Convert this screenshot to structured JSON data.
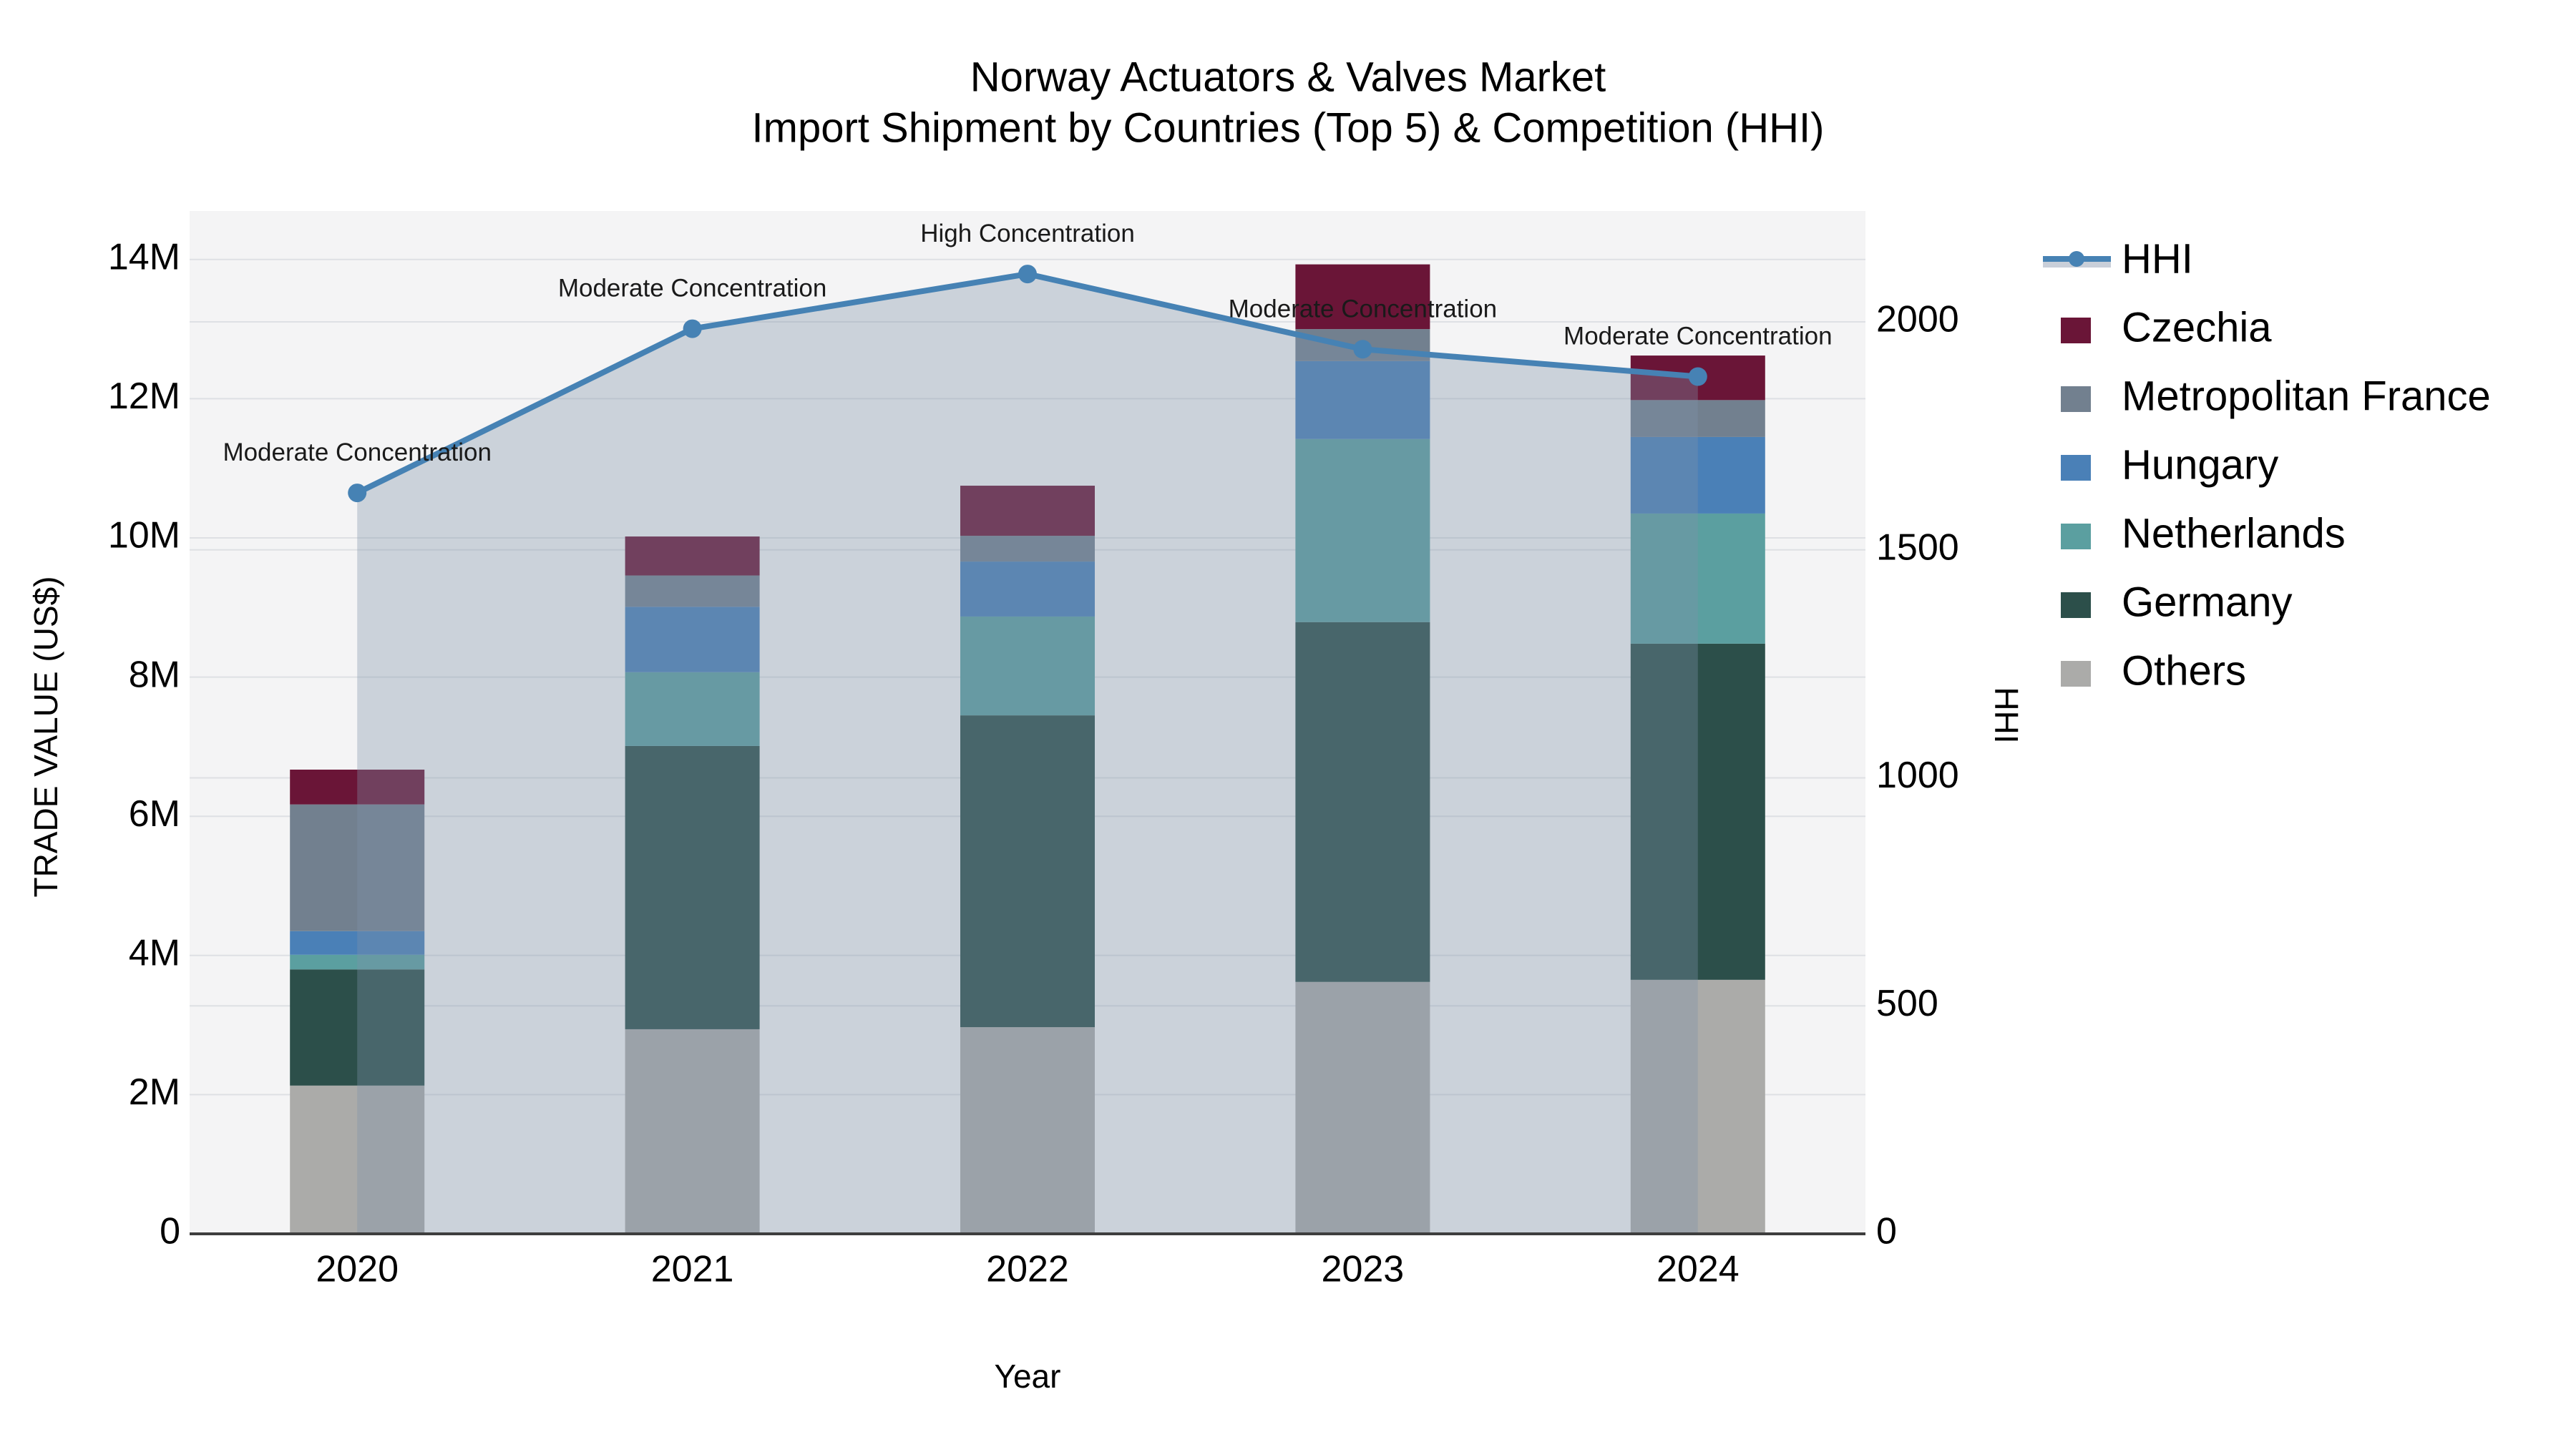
{
  "title": {
    "line1": "Norway Actuators & Valves Market",
    "line2": "Import Shipment by Countries (Top 5) & Competition (HHI)"
  },
  "axes": {
    "y_left": {
      "label": "TRADE VALUE (US$)",
      "ticks": [
        {
          "label": "0",
          "value": 0
        },
        {
          "label": "2M",
          "value": 2
        },
        {
          "label": "4M",
          "value": 4
        },
        {
          "label": "6M",
          "value": 6
        },
        {
          "label": "8M",
          "value": 8
        },
        {
          "label": "10M",
          "value": 10
        },
        {
          "label": "12M",
          "value": 12
        },
        {
          "label": "14M",
          "value": 14
        }
      ]
    },
    "y_right": {
      "label": "HHI",
      "ticks": [
        {
          "label": "0",
          "value": 0
        },
        {
          "label": "500",
          "value": 500
        },
        {
          "label": "1000",
          "value": 1000
        },
        {
          "label": "1500",
          "value": 1500
        },
        {
          "label": "2000",
          "value": 2000
        }
      ]
    },
    "x": {
      "label": "Year",
      "categories": [
        "2020",
        "2021",
        "2022",
        "2023",
        "2024"
      ]
    }
  },
  "legend": [
    {
      "label": "HHI",
      "type": "line",
      "color": "#4682B4"
    },
    {
      "label": "Czechia",
      "type": "swatch",
      "color": "#6A1537"
    },
    {
      "label": "Metropolitan France",
      "type": "swatch",
      "color": "#72808F"
    },
    {
      "label": "Hungary",
      "type": "swatch",
      "color": "#4A80B7"
    },
    {
      "label": "Netherlands",
      "type": "swatch",
      "color": "#5B9FA0"
    },
    {
      "label": "Germany",
      "type": "swatch",
      "color": "#2C4F4A"
    },
    {
      "label": "Others",
      "type": "swatch",
      "color": "#ABABA9"
    }
  ],
  "chart_data": {
    "type": "bar+line",
    "title": "Norway Actuators & Valves Market — Import Shipment by Countries (Top 5) & Competition (HHI)",
    "xlabel": "Year",
    "ylabel_left": "TRADE VALUE (US$)",
    "ylabel_right": "HHI",
    "ylim_left_millions": [
      0,
      14.7
    ],
    "ylim_right": [
      0,
      2325
    ],
    "grid": true,
    "legend_position": "right",
    "categories": [
      "2020",
      "2021",
      "2022",
      "2023",
      "2024"
    ],
    "series": [
      {
        "name": "Others",
        "color": "#ABABA9",
        "values_millions": [
          2.13,
          2.94,
          2.97,
          3.62,
          3.65
        ]
      },
      {
        "name": "Germany",
        "color": "#2C4F4A",
        "values_millions": [
          1.67,
          4.07,
          4.48,
          5.17,
          4.83
        ]
      },
      {
        "name": "Netherlands",
        "color": "#5B9FA0",
        "values_millions": [
          0.21,
          1.06,
          1.42,
          2.63,
          1.87
        ]
      },
      {
        "name": "Hungary",
        "color": "#4A80B7",
        "values_millions": [
          0.34,
          0.94,
          0.79,
          1.12,
          1.1
        ]
      },
      {
        "name": "Metropolitan France",
        "color": "#72808F",
        "values_millions": [
          1.82,
          0.45,
          0.37,
          0.46,
          0.53
        ]
      },
      {
        "name": "Czechia",
        "color": "#6A1537",
        "values_millions": [
          0.5,
          0.56,
          0.72,
          0.93,
          0.64
        ]
      }
    ],
    "bar_totals_millions": [
      6.67,
      10.02,
      10.75,
      13.93,
      12.62
    ],
    "line": {
      "name": "HHI",
      "axis": "right",
      "color": "#4682B4",
      "fill": "rgba(126,146,169,0.35)",
      "values": [
        1625,
        1985,
        2105,
        1940,
        1880
      ]
    },
    "annotations": [
      "Moderate Concentration",
      "Moderate Concentration",
      "High Concentration",
      "Moderate Concentration",
      "Moderate Concentration"
    ]
  },
  "colors": {
    "plot_background": "#F4F4F5",
    "gridline": "#DEE0E4",
    "axis_spine": "#3E3E3E",
    "text": "#000000",
    "annotation_text": "#1A1A1A",
    "hhi_line": "#4682B4",
    "hhi_fill": "rgba(126,146,169,0.35)",
    "hhi_legend_band": "#C9CFD9"
  }
}
